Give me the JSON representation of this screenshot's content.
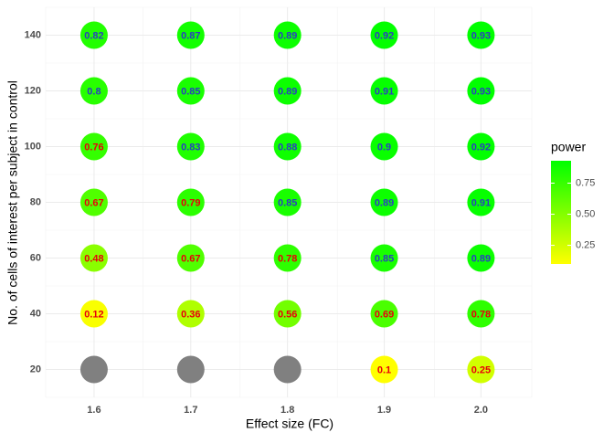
{
  "chart_data": {
    "type": "dot-matrix",
    "x_label": "Effect size (FC)",
    "y_label": "No. of cells of interest per subject in control",
    "x": [
      "1.6",
      "1.7",
      "1.8",
      "1.9",
      "2.0"
    ],
    "y": [
      20,
      40,
      60,
      80,
      100,
      120,
      140
    ],
    "values": [
      [
        null,
        null,
        null,
        0.1,
        0.25
      ],
      [
        0.12,
        0.36,
        0.56,
        0.69,
        0.78
      ],
      [
        0.48,
        0.67,
        0.78,
        0.85,
        0.89
      ],
      [
        0.67,
        0.79,
        0.85,
        0.89,
        0.91
      ],
      [
        0.76,
        0.83,
        0.88,
        0.9,
        0.92
      ],
      [
        0.8,
        0.85,
        0.89,
        0.91,
        0.93
      ],
      [
        0.82,
        0.87,
        0.89,
        0.92,
        0.93
      ]
    ],
    "legend_title": "power",
    "clim": [
      0.1,
      0.93
    ],
    "cticks": [
      0.25,
      {
        "value": 0.5,
        "label": "0.50"
      },
      0.75
    ],
    "colorscale": [
      "#ffff00",
      "#00ff00"
    ],
    "na_color": "#808080",
    "label_colors": [
      "#e8000b",
      "#2a3fbf"
    ],
    "label_split": 0.8,
    "grid": true
  }
}
